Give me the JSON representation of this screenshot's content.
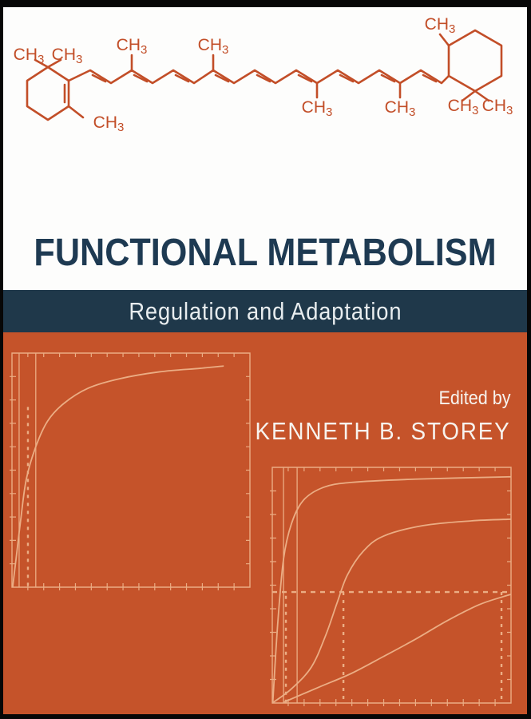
{
  "cover": {
    "title": "FUNCTIONAL METABOLISM",
    "subtitle": "Regulation and Adaptation",
    "edited_by": "Edited by",
    "editor": "KENNETH B. STOREY",
    "molecule": {
      "name": "beta-carotene",
      "methyl_prefix": "CH",
      "methyl_subscript": "3",
      "methyl_count": 10
    },
    "colors": {
      "orange": "#C5532A",
      "navy_bar": "#1F384A",
      "title_navy": "#1E3A52",
      "molecule_stroke": "#C24E28",
      "plot_line": "#EBAD84",
      "cover_white": "#FDFDFC",
      "frame_black": "#070707"
    }
  },
  "chart_data": [
    {
      "type": "line",
      "title": "",
      "xlabel": "",
      "ylabel": "",
      "axis_tick_labels": "none (decorative unlabeled kinetics plot)",
      "tick_counts": {
        "x": 15,
        "y": 10
      },
      "series": [
        {
          "name": "hyperbolic saturation curve",
          "points_norm": [
            [
              0.003,
              0.0
            ],
            [
              0.017,
              0.12
            ],
            [
              0.037,
              0.29
            ],
            [
              0.06,
              0.46
            ],
            [
              0.1,
              0.6
            ],
            [
              0.15,
              0.71
            ],
            [
              0.218,
              0.785
            ],
            [
              0.32,
              0.85
            ],
            [
              0.45,
              0.89
            ],
            [
              0.62,
              0.92
            ],
            [
              0.79,
              0.935
            ],
            [
              0.89,
              0.945
            ]
          ]
        }
      ],
      "guides": {
        "solid_vlines": [
          0.03,
          0.1
        ],
        "dashed_vlines": [
          {
            "x": 0.067,
            "y0": 0.0,
            "y1": 0.77
          }
        ],
        "dashed_hlines": []
      }
    },
    {
      "type": "line",
      "title": "",
      "xlabel": "",
      "ylabel": "",
      "axis_tick_labels": "none (decorative unlabeled kinetics plot)",
      "tick_counts": {
        "x": 15,
        "y": 10
      },
      "series": [
        {
          "name": "upper hyperbolic curve",
          "points_norm": [
            [
              0.002,
              0.0
            ],
            [
              0.023,
              0.34
            ],
            [
              0.047,
              0.61
            ],
            [
              0.08,
              0.76
            ],
            [
              0.13,
              0.86
            ],
            [
              0.214,
              0.915
            ],
            [
              0.33,
              0.936
            ],
            [
              0.6,
              0.95
            ],
            [
              1.0,
              0.96
            ]
          ]
        },
        {
          "name": "middle sigmoidal curve",
          "points_norm": [
            [
              0.0,
              0.0
            ],
            [
              0.08,
              0.06
            ],
            [
              0.164,
              0.153
            ],
            [
              0.224,
              0.288
            ],
            [
              0.271,
              0.424
            ],
            [
              0.314,
              0.542
            ],
            [
              0.381,
              0.644
            ],
            [
              0.465,
              0.708
            ],
            [
              0.632,
              0.753
            ],
            [
              0.833,
              0.773
            ],
            [
              1.0,
              0.78
            ]
          ]
        },
        {
          "name": "lower gradual curve",
          "points_norm": [
            [
              0.047,
              0.003
            ],
            [
              0.197,
              0.068
            ],
            [
              0.33,
              0.125
            ],
            [
              0.465,
              0.197
            ],
            [
              0.6,
              0.271
            ],
            [
              0.732,
              0.349
            ],
            [
              0.866,
              0.417
            ],
            [
              0.966,
              0.451
            ],
            [
              1.0,
              0.461
            ]
          ]
        }
      ],
      "guides": {
        "solid_vlines": [
          0.047,
          0.104
        ],
        "dashed_vlines": [
          {
            "x": 0.057,
            "y0": 0.0,
            "y1": 0.455
          },
          {
            "x": 0.298,
            "y0": 0.0,
            "y1": 0.471
          },
          {
            "x": 0.96,
            "y0": 0.0,
            "y1": 0.471
          }
        ],
        "dashed_hlines": [
          {
            "y": 0.471,
            "x0": 0.0,
            "x1": 1.0
          }
        ]
      }
    }
  ]
}
